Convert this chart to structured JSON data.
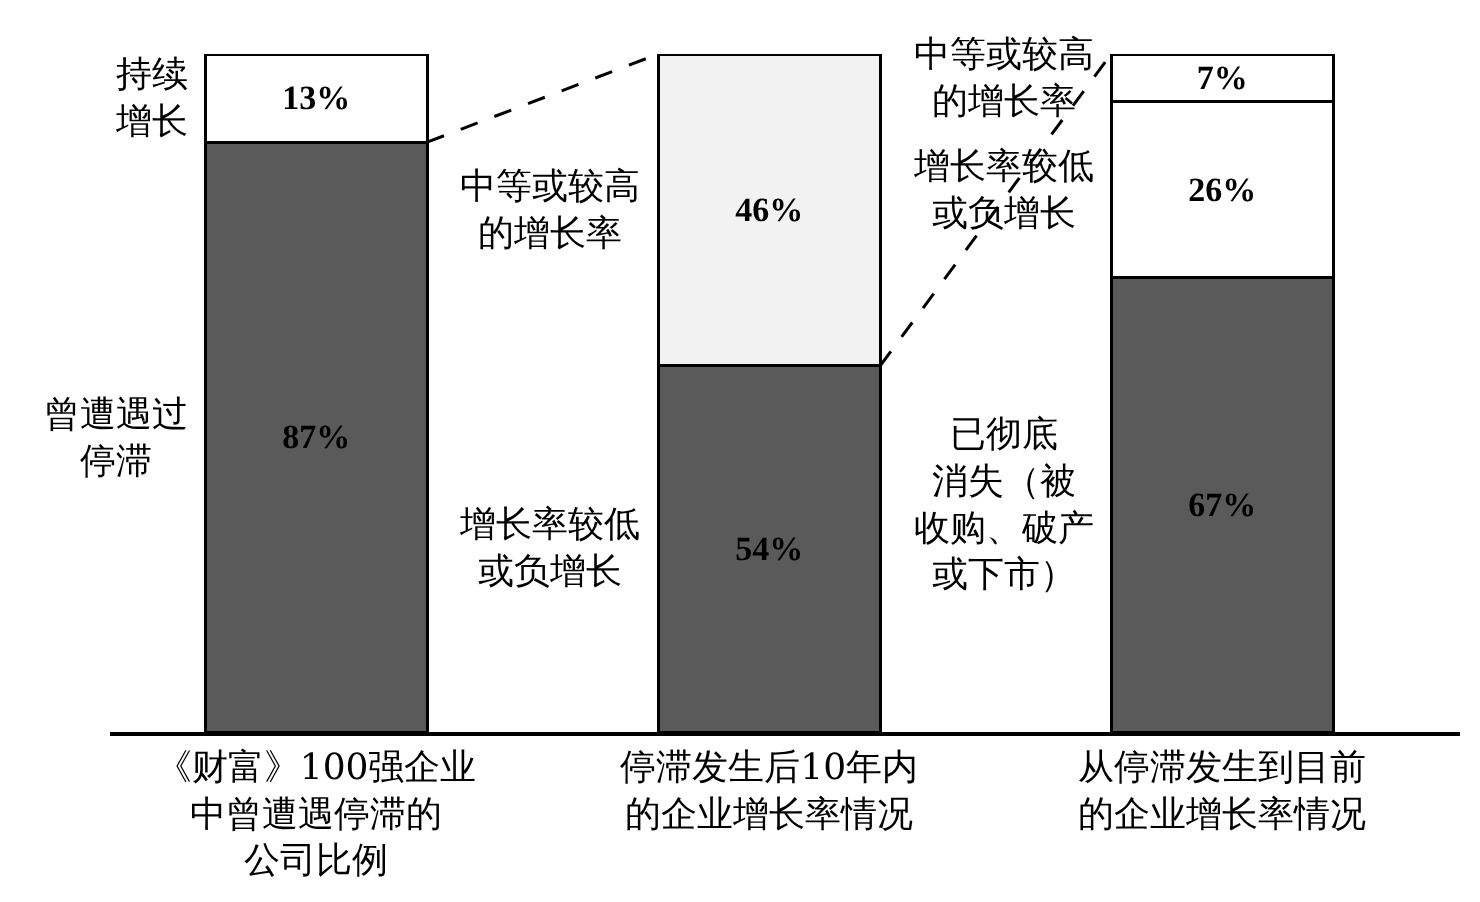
{
  "chart_data": {
    "type": "bar",
    "stacked": true,
    "tick_labels": "x",
    "ylim": [
      0,
      100
    ],
    "categories": [
      "《财富》100强企业中曾遭遇停滞的公司比例",
      "停滞发生后10年内的企业增长率情况",
      "从停滞发生到目前的企业增长率情况"
    ],
    "series": [
      {
        "name": "曾遭遇过停滞",
        "color": "#5a5a5a",
        "values": [
          87,
          null,
          null
        ],
        "value_labels": [
          "87%",
          null,
          null
        ]
      },
      {
        "name": "持续增长",
        "color": "#ffffff",
        "values": [
          13,
          null,
          null
        ],
        "value_labels": [
          "13%",
          null,
          null
        ]
      },
      {
        "name": "增长率较低或负增长",
        "color": "#5a5a5a",
        "values": [
          null,
          54,
          null
        ],
        "value_labels": [
          null,
          "54%",
          null
        ]
      },
      {
        "name": "中等或较高的增长率",
        "color": "#f2f2f2",
        "values": [
          null,
          46,
          null
        ],
        "value_labels": [
          null,
          "46%",
          null
        ]
      },
      {
        "name": "已彻底消失（被收购、破产或下市）",
        "color": "#5a5a5a",
        "values": [
          null,
          null,
          67
        ],
        "value_labels": [
          null,
          null,
          "67%"
        ]
      },
      {
        "name": "增长率较低或负增长",
        "color": "#ffffff",
        "values": [
          null,
          null,
          26
        ],
        "value_labels": [
          null,
          null,
          "26%"
        ]
      },
      {
        "name": "中等或较高的增长率",
        "color": "#ffffff",
        "values": [
          null,
          null,
          7
        ],
        "value_labels": [
          null,
          null,
          "7%"
        ]
      }
    ]
  }
}
